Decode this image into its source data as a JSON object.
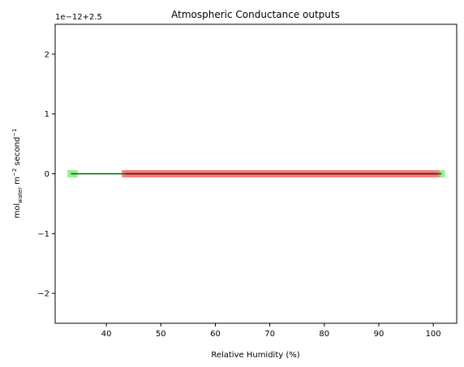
{
  "chart_data": {
    "type": "scatter",
    "title": "Atmospheric Conductance outputs",
    "xlabel": "Relative Humidity (%)",
    "ylabel_parts": {
      "base": "mol",
      "sub": "water",
      "mid": " m",
      "sup1": "−2",
      "end": " second",
      "sup2": "−1"
    },
    "offset_text": "1e−12+2.5",
    "xlim": [
      30.6,
      104.3
    ],
    "ylim": [
      -2.5,
      2.5
    ],
    "x_ticks": [
      40,
      50,
      60,
      70,
      80,
      90,
      100
    ],
    "y_ticks": [
      -2,
      -1,
      0,
      1,
      2
    ],
    "y_tick_labels": [
      "−2",
      "−1",
      "0",
      "1",
      "2"
    ],
    "grid": false,
    "series": [
      {
        "role": "green-points",
        "color": "#90ee90",
        "x_range": [
          33.5,
          101.5
        ],
        "y": 0
      },
      {
        "role": "red-points",
        "color": "#f08080",
        "x_range": [
          43.5,
          100.8
        ],
        "y": 0
      },
      {
        "role": "green-line",
        "color": "#006400",
        "x": [
          33.5,
          101.5
        ],
        "y": [
          0,
          0
        ]
      },
      {
        "role": "red-line",
        "color": "#8b0000",
        "x": [
          43.5,
          100.8
        ],
        "y": [
          0,
          0
        ]
      }
    ]
  }
}
